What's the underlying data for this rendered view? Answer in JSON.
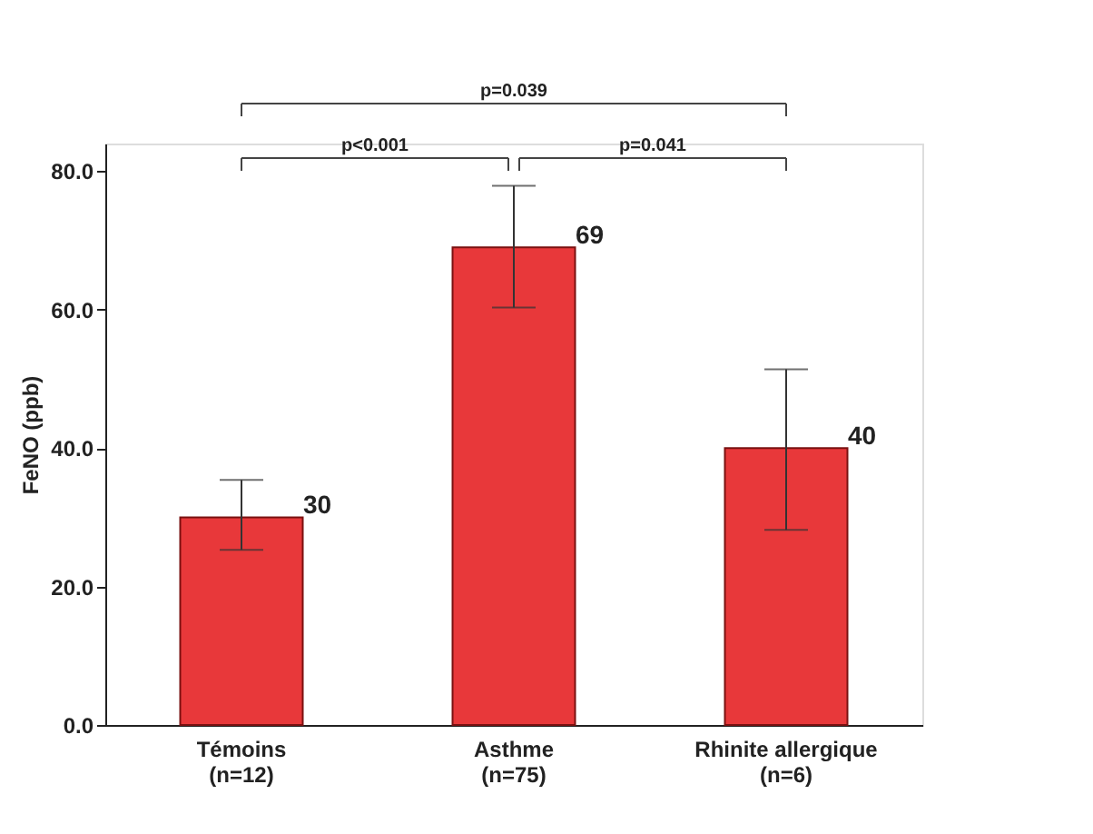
{
  "chart_data": {
    "type": "bar",
    "ylabel": "FeNO (ppb)",
    "categories": [
      "Témoins\n(n=12)",
      "Asthme\n(n=75)",
      "Rhinite allergique\n(n=6)"
    ],
    "values": [
      30,
      69,
      40
    ],
    "color": "#e8383a",
    "errors": [
      [
        25.3,
        35.4
      ],
      [
        60.3,
        77.9
      ],
      [
        28.2,
        51.4
      ]
    ],
    "data_labels": true,
    "ylim": [
      0,
      84
    ],
    "yticks": [
      {
        "value": 0,
        "label": "0.0"
      },
      {
        "value": 20,
        "label": "20.0"
      },
      {
        "value": 40,
        "label": "40.0"
      },
      {
        "value": 60,
        "label": "60.0"
      },
      {
        "value": 80,
        "label": "80.0"
      }
    ],
    "annotations": [
      "p<0.001",
      "p=0.041",
      "p=0.039"
    ]
  }
}
